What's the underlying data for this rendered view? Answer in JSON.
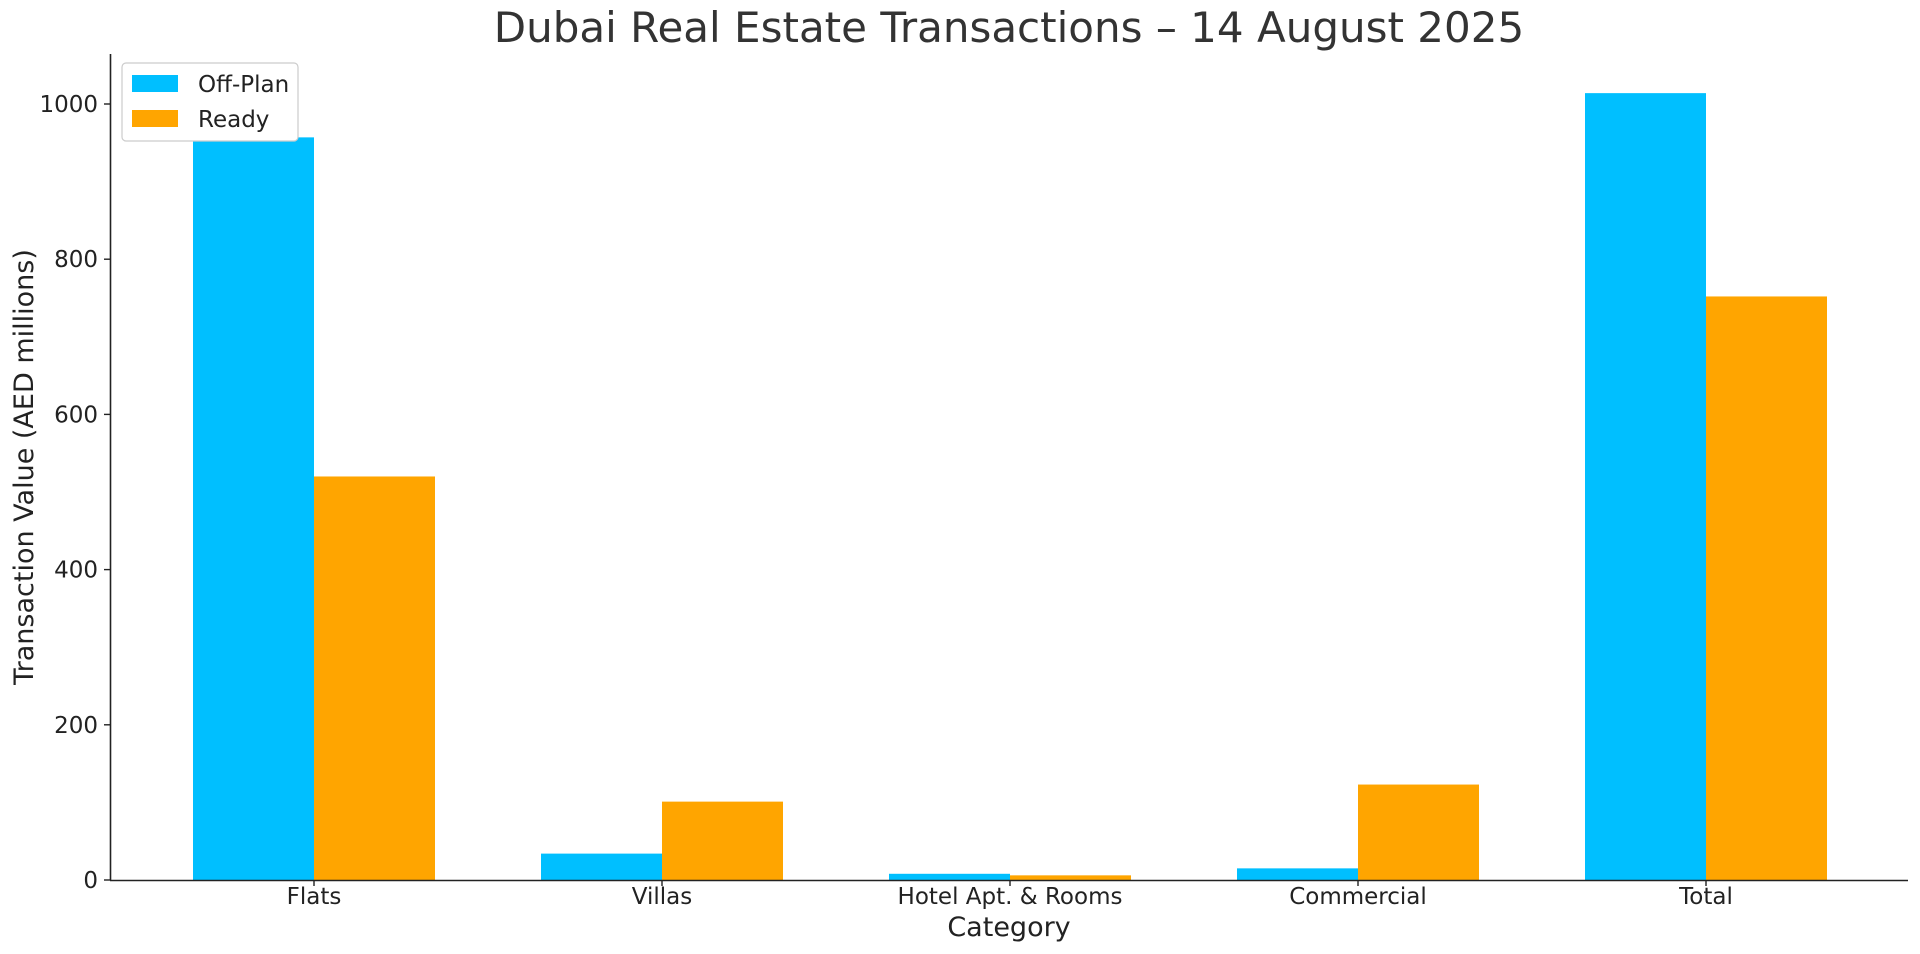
{
  "chart_data": {
    "type": "bar",
    "title": "Dubai Real Estate Transactions – 14 August 2025",
    "xlabel": "Category",
    "ylabel": "Transaction Value (AED millions)",
    "categories": [
      "Flats",
      "Villas",
      "Hotel Apt. & Rooms",
      "Commercial",
      "Total"
    ],
    "series": [
      {
        "name": "Off-Plan",
        "color": "#00BFFF",
        "values": [
          957,
          34,
          8,
          15,
          1014
        ]
      },
      {
        "name": "Ready",
        "color": "#FFA500",
        "values": [
          520,
          101,
          6,
          123,
          752
        ]
      }
    ],
    "ylim": [
      0,
      1065
    ],
    "yticks": [
      0,
      200,
      400,
      600,
      800,
      1000
    ],
    "grid": false,
    "legend_position": "top-left"
  }
}
